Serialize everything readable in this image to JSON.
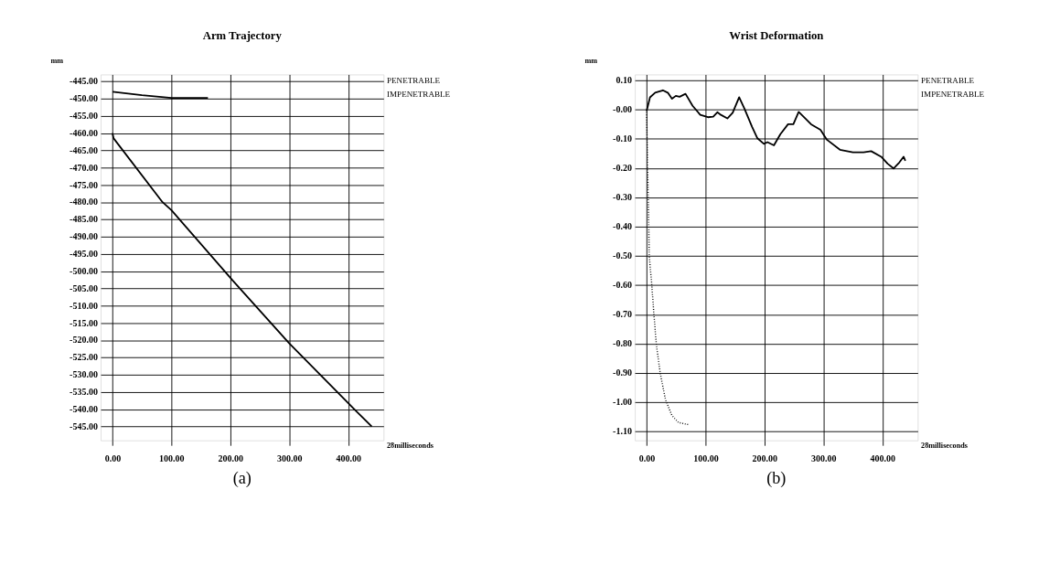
{
  "chart_data": [
    {
      "type": "line",
      "title": "Arm Trajectory",
      "ylabel": "mm",
      "xlabel": "28milliseconds",
      "annotations": [
        "PENETRABLE",
        "IMPENETRABLE",
        "(a)"
      ],
      "series": [
        {
          "color": "#000000",
          "line_style": "solid",
          "x": [
            0,
            50,
            100,
            130,
            162
          ],
          "values": [
            -448.0,
            -449.0,
            -449.8,
            -449.8,
            -449.8
          ]
        },
        {
          "color": "#000000",
          "line_style": "solid",
          "x": [
            0,
            2,
            85,
            100,
            200,
            300,
            411,
            440
          ],
          "values": [
            -460.0,
            -461.5,
            -480.0,
            -482.3,
            -501.9,
            -520.9,
            -540.1,
            -545.0
          ]
        }
      ],
      "xlim": [
        -20,
        460
      ],
      "ylim": [
        -549,
        -443
      ],
      "xticks": [
        {
          "value": 0,
          "label": "0.00"
        },
        {
          "value": 100,
          "label": "100.00"
        },
        {
          "value": 200,
          "label": "200.00"
        },
        {
          "value": 300,
          "label": "300.00"
        },
        {
          "value": 400,
          "label": "400.00"
        }
      ],
      "yticks": [
        {
          "value": -445,
          "label": "-445.00"
        },
        {
          "value": -450,
          "label": "-450.00"
        },
        {
          "value": -455,
          "label": "-455.00"
        },
        {
          "value": -460,
          "label": "-460.00"
        },
        {
          "value": -465,
          "label": "-465.00"
        },
        {
          "value": -470,
          "label": "-470.00"
        },
        {
          "value": -475,
          "label": "-475.00"
        },
        {
          "value": -480,
          "label": "-480.00"
        },
        {
          "value": -485,
          "label": "-485.00"
        },
        {
          "value": -490,
          "label": "-490.00"
        },
        {
          "value": -495,
          "label": "-495.00"
        },
        {
          "value": -500,
          "label": "-500.00"
        },
        {
          "value": -505,
          "label": "-505.00"
        },
        {
          "value": -510,
          "label": "-510.00"
        },
        {
          "value": -515,
          "label": "-515.00"
        },
        {
          "value": -520,
          "label": "-520.00"
        },
        {
          "value": -525,
          "label": "-525.00"
        },
        {
          "value": -530,
          "label": "-530.00"
        },
        {
          "value": -535,
          "label": "-535.00"
        },
        {
          "value": -540,
          "label": "-540.00"
        },
        {
          "value": -545,
          "label": "-545.00"
        }
      ],
      "grid": true
    },
    {
      "type": "line",
      "title": "Wrist Deformation",
      "ylabel": "mm",
      "xlabel": "28milliseconds",
      "annotations": [
        "PENETRABLE",
        "IMPENETRABLE",
        "(b)"
      ],
      "series": [
        {
          "color": "#000000",
          "line_style": "solid",
          "x": [
            0,
            5.7,
            14.5,
            27.6,
            36.4,
            43,
            49.6,
            56,
            66,
            78,
            91,
            104,
            113,
            120,
            126,
            137,
            146,
            157,
            166,
            179,
            188,
            199,
            205,
            216,
            227,
            240,
            249,
            258,
            267,
            279,
            295,
            306,
            328,
            350,
            368,
            381,
            398,
            409,
            419,
            429,
            436,
            439
          ],
          "values": [
            -0.005,
            0.042,
            0.058,
            0.066,
            0.057,
            0.037,
            0.047,
            0.044,
            0.054,
            0.013,
            -0.018,
            -0.026,
            -0.024,
            -0.009,
            -0.018,
            -0.03,
            -0.011,
            0.042,
            0.003,
            -0.059,
            -0.098,
            -0.117,
            -0.111,
            -0.122,
            -0.084,
            -0.05,
            -0.05,
            -0.008,
            -0.026,
            -0.05,
            -0.069,
            -0.103,
            -0.137,
            -0.146,
            -0.146,
            -0.142,
            -0.161,
            -0.185,
            -0.201,
            -0.18,
            -0.161,
            -0.175
          ]
        },
        {
          "color": "#000000",
          "line_style": "dotted",
          "x": [
            0,
            1.3,
            3.5,
            4.4,
            8.8,
            12.4,
            16.4,
            23,
            31.9,
            42.9,
            54,
            70.8
          ],
          "values": [
            0.0,
            -0.16,
            -0.38,
            -0.5,
            -0.6,
            -0.7,
            -0.8,
            -0.9,
            -0.99,
            -1.045,
            -1.069,
            -1.076
          ]
        }
      ],
      "xlim": [
        -20,
        460
      ],
      "ylim": [
        -1.13,
        0.12
      ],
      "xticks": [
        {
          "value": 0,
          "label": "0.00"
        },
        {
          "value": 100,
          "label": "100.00"
        },
        {
          "value": 200,
          "label": "200.00"
        },
        {
          "value": 300,
          "label": "300.00"
        },
        {
          "value": 400,
          "label": "400.00"
        }
      ],
      "yticks": [
        {
          "value": 0.1,
          "label": "0.10"
        },
        {
          "value": 0,
          "label": "-0.00"
        },
        {
          "value": -0.1,
          "label": "-0.10"
        },
        {
          "value": -0.2,
          "label": "-0.20"
        },
        {
          "value": -0.3,
          "label": "-0.30"
        },
        {
          "value": -0.4,
          "label": "-0.40"
        },
        {
          "value": -0.5,
          "label": "-0.50"
        },
        {
          "value": -0.6,
          "label": "-0.60"
        },
        {
          "value": -0.7,
          "label": "-0.70"
        },
        {
          "value": -0.8,
          "label": "-0.80"
        },
        {
          "value": -0.9,
          "label": "-0.90"
        },
        {
          "value": -1.0,
          "label": "-1.00"
        },
        {
          "value": -1.1,
          "label": "-1.10"
        }
      ],
      "grid": true
    }
  ]
}
